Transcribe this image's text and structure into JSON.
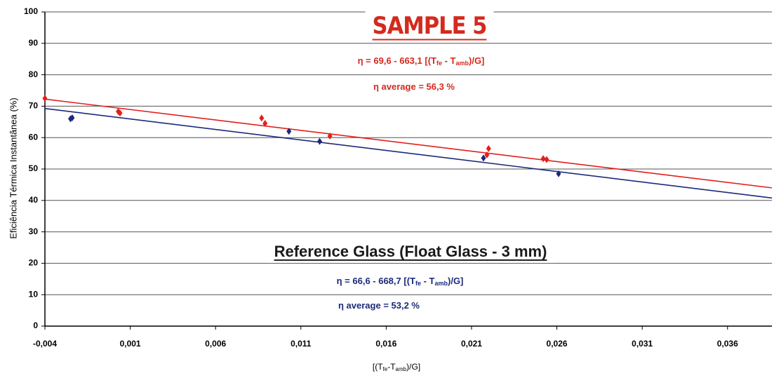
{
  "chart_data": {
    "type": "scatter",
    "y_label": "Eficiência Térmica Instantânea (%)",
    "x_label_parts": [
      "[(T",
      "fe",
      "-T",
      "amb",
      ")/G]"
    ],
    "xlim": [
      -0.004,
      0.0386
    ],
    "xticks": [
      {
        "value": -0.004,
        "label": "-0,004"
      },
      {
        "value": 0.001,
        "label": "0,001"
      },
      {
        "value": 0.006,
        "label": "0,006"
      },
      {
        "value": 0.011,
        "label": "0,011"
      },
      {
        "value": 0.016,
        "label": "0,016"
      },
      {
        "value": 0.021,
        "label": "0,021"
      },
      {
        "value": 0.026,
        "label": "0,026"
      },
      {
        "value": 0.031,
        "label": "0,031"
      },
      {
        "value": 0.036,
        "label": "0,036"
      }
    ],
    "ylim": [
      0,
      100
    ],
    "yticks": [
      0,
      10,
      20,
      30,
      40,
      50,
      60,
      70,
      80,
      90,
      100
    ],
    "grid": true,
    "series": [
      {
        "color": "#e3201c",
        "x": [
          -0.004,
          0.0003,
          0.0004,
          0.0087,
          0.0089,
          0.0127,
          0.0219,
          0.022,
          0.0252,
          0.0254
        ],
        "values": [
          72.5,
          68.3,
          67.8,
          66.2,
          64.5,
          60.5,
          54.5,
          56.5,
          53.3,
          53
        ],
        "trendline": {
          "intercept": 69.6,
          "slope": -663.1
        }
      },
      {
        "color": "#1c2a78",
        "x": [
          -0.0025,
          -0.0024,
          0.0103,
          0.0121,
          0.0217,
          0.0261
        ],
        "values": [
          66,
          66.3,
          62,
          58.8,
          53.5,
          48.5
        ],
        "trendline": {
          "intercept": 66.6,
          "slope": -668.7
        }
      }
    ],
    "annotations": [
      {
        "parts": [
          "SAMPLE 5"
        ],
        "color": "#d42a1e"
      },
      {
        "parts": [
          "η = 69,6 - 663,1 [(T",
          "fe",
          " - T",
          "amb",
          ")/G]"
        ],
        "color": "#d42a1e"
      },
      {
        "parts": [
          "η average = 56,3 %"
        ],
        "color": "#d42a1e"
      },
      {
        "parts": [
          "Reference Glass  (Float Glass -  3 mm)"
        ],
        "color": "#1a1a1a"
      },
      {
        "parts": [
          "η = 66,6 - 668,7 [(T",
          "fe",
          " - T",
          "amb",
          ")/G]"
        ],
        "color": "#1c2a78"
      },
      {
        "parts": [
          "η average = 53,2 %"
        ],
        "color": "#1c2a78"
      }
    ]
  }
}
